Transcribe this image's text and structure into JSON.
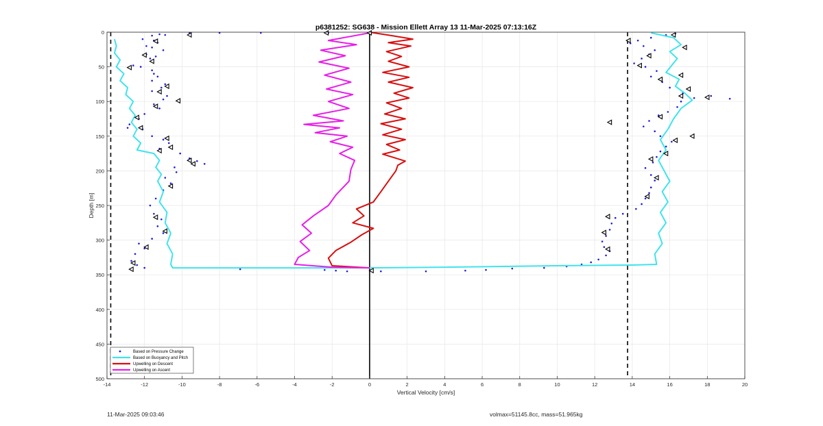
{
  "chart_data": {
    "type": "line",
    "title": "p6381252: SG638 - Mission Ellett Array 13 11-Mar-2025 07:13:16Z",
    "xlabel": "Vertical Velocity [cm/s]",
    "ylabel": "Depth [m]",
    "xlim": [
      -14,
      20
    ],
    "ylim": [
      0,
      500
    ],
    "y_reversed": true,
    "grid": true,
    "legend_position": "bottom-left",
    "x_ticks": [
      "-14",
      "-12",
      "-10",
      "-8",
      "-6",
      "-4",
      "-2",
      "0",
      "2",
      "4",
      "6",
      "8",
      "10",
      "12",
      "14",
      "16",
      "18",
      "20"
    ],
    "y_ticks": [
      "0",
      "50",
      "100",
      "150",
      "200",
      "250",
      "300",
      "350",
      "400",
      "450",
      "500"
    ],
    "reference_lines": [
      {
        "name": "zero-line",
        "x": 0,
        "style": "solid",
        "color": "#000000"
      },
      {
        "name": "left-limit",
        "x": -13.8,
        "style": "dashed",
        "color": "#000000"
      },
      {
        "name": "right-limit",
        "x": 13.75,
        "style": "dashed",
        "color": "#000000"
      }
    ],
    "series": [
      {
        "name": "Based on Pressure Change",
        "marker": "dot",
        "color": "#1c1cd6",
        "points": [
          [
            -9.6,
            1
          ],
          [
            -8,
            1
          ],
          [
            -5.8,
            1
          ],
          [
            -2.2,
            1
          ],
          [
            -11.6,
            5
          ],
          [
            -11.2,
            3
          ],
          [
            -10.9,
            4
          ],
          [
            -12.1,
            10
          ],
          [
            -11.5,
            12
          ],
          [
            -11.3,
            15
          ],
          [
            -11.9,
            20
          ],
          [
            -11.6,
            22
          ],
          [
            -11.0,
            26
          ],
          [
            -11.9,
            32
          ],
          [
            -11.4,
            35
          ],
          [
            -11.7,
            38
          ],
          [
            -12.6,
            48
          ],
          [
            -12.2,
            50
          ],
          [
            -11.6,
            55
          ],
          [
            -11.5,
            60
          ],
          [
            -11.3,
            64
          ],
          [
            -11.6,
            70
          ],
          [
            -10.9,
            75
          ],
          [
            -11.1,
            80
          ],
          [
            -11.6,
            85
          ],
          [
            -10.8,
            92
          ],
          [
            -11.0,
            97
          ],
          [
            -11.5,
            104
          ],
          [
            -11.2,
            110
          ],
          [
            -12.0,
            118
          ],
          [
            -12.3,
            125
          ],
          [
            -12.8,
            133
          ],
          [
            -12.1,
            140
          ],
          [
            -12.9,
            138
          ],
          [
            -11.6,
            150
          ],
          [
            -11.0,
            155
          ],
          [
            -10.7,
            160
          ],
          [
            -11.2,
            168
          ],
          [
            -10.1,
            175
          ],
          [
            -9.6,
            182
          ],
          [
            -9.2,
            186
          ],
          [
            -8.8,
            190
          ],
          [
            -10.4,
            195
          ],
          [
            -10.3,
            202
          ],
          [
            -10.9,
            210
          ],
          [
            -10.6,
            218
          ],
          [
            -11.0,
            228
          ],
          [
            -11.4,
            240
          ],
          [
            -11.7,
            250
          ],
          [
            -11.5,
            262
          ],
          [
            -11.1,
            270
          ],
          [
            -11.3,
            280
          ],
          [
            -11.0,
            290
          ],
          [
            -11.6,
            298
          ],
          [
            -12.3,
            305
          ],
          [
            -12.0,
            312
          ],
          [
            -12.5,
            320
          ],
          [
            -12.7,
            330
          ],
          [
            -12.4,
            336
          ],
          [
            -12.0,
            340
          ],
          [
            -6.9,
            342
          ],
          [
            -2.4,
            343
          ],
          [
            -1.8,
            344
          ],
          [
            -1.2,
            345
          ],
          [
            0.1,
            344
          ],
          [
            0.6,
            345
          ],
          [
            3.0,
            345
          ],
          [
            5.1,
            344
          ],
          [
            6.2,
            343
          ],
          [
            7.6,
            341
          ],
          [
            9.3,
            340
          ],
          [
            10.5,
            338
          ],
          [
            11.3,
            335
          ],
          [
            11.8,
            332
          ],
          [
            12.2,
            328
          ],
          [
            12.6,
            322
          ],
          [
            12.8,
            316
          ],
          [
            12.5,
            310
          ],
          [
            12.4,
            302
          ],
          [
            12.6,
            294
          ],
          [
            12.8,
            285
          ],
          [
            12.9,
            276
          ],
          [
            13.1,
            268
          ],
          [
            13.5,
            262
          ],
          [
            14.2,
            255
          ],
          [
            14.5,
            248
          ],
          [
            14.7,
            240
          ],
          [
            14.9,
            232
          ],
          [
            15.0,
            224
          ],
          [
            15.2,
            214
          ],
          [
            15.0,
            206
          ],
          [
            14.7,
            196
          ],
          [
            15.1,
            188
          ],
          [
            15.3,
            180
          ],
          [
            15.5,
            172
          ],
          [
            15.8,
            165
          ],
          [
            16.1,
            158
          ],
          [
            15.5,
            150
          ],
          [
            15.2,
            143
          ],
          [
            14.6,
            136
          ],
          [
            14.9,
            128
          ],
          [
            15.4,
            120
          ],
          [
            15.9,
            115
          ],
          [
            16.4,
            108
          ],
          [
            16.6,
            100
          ],
          [
            17.3,
            95
          ],
          [
            18.2,
            92
          ],
          [
            19.2,
            96
          ],
          [
            16.7,
            88
          ],
          [
            16.0,
            80
          ],
          [
            15.6,
            72
          ],
          [
            15.0,
            64
          ],
          [
            15.3,
            56
          ],
          [
            14.7,
            50
          ],
          [
            14.1,
            45
          ],
          [
            14.5,
            38
          ],
          [
            14.9,
            32
          ],
          [
            15.2,
            26
          ],
          [
            14.6,
            20
          ],
          [
            13.9,
            16
          ],
          [
            14.3,
            12
          ],
          [
            15.0,
            8
          ],
          [
            15.8,
            4
          ],
          [
            16.3,
            2
          ]
        ]
      },
      {
        "name": "Based on Buoyancy and Pitch",
        "marker": "none",
        "color": "#3fe3ec",
        "points": [
          [
            -13.6,
            10
          ],
          [
            -13.5,
            20
          ],
          [
            -13.6,
            30
          ],
          [
            -13.3,
            40
          ],
          [
            -13.5,
            50
          ],
          [
            -13.1,
            60
          ],
          [
            -13.3,
            70
          ],
          [
            -12.9,
            80
          ],
          [
            -13.0,
            90
          ],
          [
            -12.6,
            100
          ],
          [
            -12.8,
            110
          ],
          [
            -12.5,
            120
          ],
          [
            -12.7,
            130
          ],
          [
            -12.4,
            140
          ],
          [
            -12.6,
            150
          ],
          [
            -12.2,
            160
          ],
          [
            -12.4,
            170
          ],
          [
            -11.5,
            175
          ],
          [
            -11.2,
            185
          ],
          [
            -11.4,
            195
          ],
          [
            -11.1,
            205
          ],
          [
            -11.3,
            215
          ],
          [
            -11.0,
            230
          ],
          [
            -11.2,
            245
          ],
          [
            -10.8,
            260
          ],
          [
            -10.9,
            275
          ],
          [
            -10.6,
            290
          ],
          [
            -10.8,
            305
          ],
          [
            -10.5,
            320
          ],
          [
            -10.6,
            335
          ],
          [
            -10.5,
            340
          ],
          [
            0,
            340
          ],
          [
            4,
            339
          ],
          [
            10,
            337
          ],
          [
            14,
            336
          ],
          [
            15.3,
            335
          ],
          [
            15.2,
            320
          ],
          [
            15.6,
            305
          ],
          [
            15.4,
            290
          ],
          [
            15.8,
            275
          ],
          [
            15.5,
            260
          ],
          [
            15.9,
            245
          ],
          [
            15.6,
            230
          ],
          [
            16.0,
            215
          ],
          [
            15.7,
            200
          ],
          [
            15.4,
            185
          ],
          [
            15.8,
            170
          ],
          [
            15.5,
            155
          ],
          [
            15.9,
            140
          ],
          [
            16.2,
            125
          ],
          [
            16.6,
            110
          ],
          [
            17.2,
            98
          ],
          [
            16.8,
            88
          ],
          [
            16.3,
            78
          ],
          [
            16.5,
            68
          ],
          [
            15.8,
            58
          ],
          [
            16.1,
            48
          ],
          [
            16.4,
            38
          ],
          [
            16.0,
            28
          ],
          [
            16.6,
            18
          ],
          [
            16.2,
            8
          ],
          [
            15.0,
            1
          ]
        ]
      },
      {
        "name": "Upwelling on Descent",
        "marker": "none",
        "color": "#d80e0e",
        "points": [
          [
            0,
            0
          ],
          [
            1.2,
            5
          ],
          [
            2.3,
            10
          ],
          [
            1.0,
            15
          ],
          [
            2.2,
            20
          ],
          [
            0.9,
            28
          ],
          [
            1.7,
            35
          ],
          [
            1.0,
            42
          ],
          [
            2.1,
            50
          ],
          [
            0.7,
            58
          ],
          [
            2.1,
            65
          ],
          [
            1.0,
            72
          ],
          [
            2.3,
            80
          ],
          [
            1.3,
            88
          ],
          [
            2.1,
            95
          ],
          [
            0.9,
            102
          ],
          [
            1.7,
            110
          ],
          [
            0.8,
            118
          ],
          [
            1.9,
            125
          ],
          [
            0.6,
            132
          ],
          [
            1.7,
            140
          ],
          [
            0.7,
            148
          ],
          [
            1.9,
            155
          ],
          [
            0.9,
            162
          ],
          [
            1.6,
            170
          ],
          [
            0.7,
            176
          ],
          [
            1.9,
            186
          ],
          [
            1.5,
            192
          ],
          [
            1.4,
            200
          ],
          [
            1.0,
            215
          ],
          [
            0.6,
            230
          ],
          [
            0.2,
            245
          ],
          [
            -0.7,
            255
          ],
          [
            -0.3,
            265
          ],
          [
            -0.9,
            275
          ],
          [
            0.2,
            283
          ],
          [
            -0.4,
            292
          ],
          [
            -1.0,
            303
          ],
          [
            -1.8,
            315
          ],
          [
            -2.2,
            326
          ],
          [
            -2.0,
            337
          ],
          [
            0,
            340
          ]
        ]
      },
      {
        "name": "Upwelling on Ascent",
        "marker": "none",
        "color": "#e81de8",
        "points": [
          [
            0,
            1
          ],
          [
            -2.2,
            12
          ],
          [
            -0.7,
            18
          ],
          [
            -2.6,
            26
          ],
          [
            -1.3,
            34
          ],
          [
            -2.7,
            43
          ],
          [
            -1.1,
            52
          ],
          [
            -2.4,
            62
          ],
          [
            -1.0,
            72
          ],
          [
            -2.3,
            82
          ],
          [
            -0.9,
            90
          ],
          [
            -2.2,
            100
          ],
          [
            -1.1,
            110
          ],
          [
            -3.0,
            120
          ],
          [
            -1.4,
            128
          ],
          [
            -3.5,
            133
          ],
          [
            -1.6,
            138
          ],
          [
            -2.9,
            145
          ],
          [
            -1.2,
            150
          ],
          [
            -2.1,
            158
          ],
          [
            -0.9,
            166
          ],
          [
            -1.6,
            175
          ],
          [
            -0.8,
            185
          ],
          [
            -1.0,
            198
          ],
          [
            -1.1,
            215
          ],
          [
            -1.8,
            235
          ],
          [
            -2.2,
            250
          ],
          [
            -3.0,
            265
          ],
          [
            -3.6,
            278
          ],
          [
            -3.1,
            290
          ],
          [
            -3.7,
            302
          ],
          [
            -3.2,
            315
          ],
          [
            -3.8,
            325
          ],
          [
            -4.0,
            335
          ],
          [
            -2.0,
            339
          ],
          [
            0,
            340
          ]
        ]
      }
    ],
    "triangle_markers": {
      "name": "triangle markers",
      "color": "#000000",
      "points": [
        [
          -9.6,
          4
        ],
        [
          -2.3,
          1
        ],
        [
          0,
          1
        ],
        [
          -11.4,
          13
        ],
        [
          -12.0,
          33
        ],
        [
          -11.6,
          42
        ],
        [
          -12.8,
          51
        ],
        [
          -10.8,
          78
        ],
        [
          -11.2,
          86
        ],
        [
          -10.2,
          99
        ],
        [
          -11.4,
          107
        ],
        [
          -12.4,
          123
        ],
        [
          -12.2,
          138
        ],
        [
          -10.8,
          153
        ],
        [
          -10.6,
          166
        ],
        [
          -11.2,
          171
        ],
        [
          -9.6,
          185
        ],
        [
          -9.4,
          190
        ],
        [
          -10.6,
          222
        ],
        [
          -11.4,
          267
        ],
        [
          -10.9,
          287
        ],
        [
          -11.9,
          310
        ],
        [
          -12.6,
          333
        ],
        [
          -12.7,
          342
        ],
        [
          0.1,
          344
        ],
        [
          16.2,
          4
        ],
        [
          13.8,
          12
        ],
        [
          16.8,
          22
        ],
        [
          14.9,
          34
        ],
        [
          14.4,
          48
        ],
        [
          16.6,
          62
        ],
        [
          15.5,
          68
        ],
        [
          17.0,
          82
        ],
        [
          16.6,
          92
        ],
        [
          18.0,
          94
        ],
        [
          15.5,
          122
        ],
        [
          12.8,
          130
        ],
        [
          17.2,
          150
        ],
        [
          16.3,
          156
        ],
        [
          15.8,
          175
        ],
        [
          15.0,
          183
        ],
        [
          15.3,
          210
        ],
        [
          14.8,
          237
        ],
        [
          12.7,
          266
        ],
        [
          12.5,
          289
        ],
        [
          12.7,
          313
        ]
      ]
    },
    "legend": [
      "Based on Pressure Change",
      "Based on Buoyancy and Pitch",
      "Upwelling on Descent",
      "Upwelling on Ascent"
    ]
  },
  "footer": {
    "timestamp": "11-Mar-2025 09:03:46",
    "stats": "volmax=51145.8cc, mass=51.965kg"
  }
}
